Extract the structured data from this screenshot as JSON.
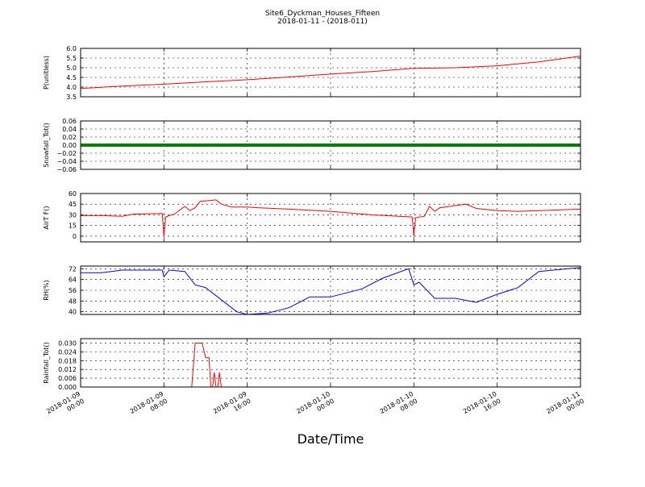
{
  "figure": {
    "title_line1": "Site6_Dyckman_Houses_Fifteen",
    "title_line2": "2018-01-11 - (2018-011)",
    "xlabel": "Date/Time"
  },
  "x_axis": {
    "start": "2018-01-09 00:00",
    "end": "2018-01-11 00:00",
    "ticks": [
      {
        "line1": "2018-01-09",
        "line2": "00:00"
      },
      {
        "line1": "2018-01-09",
        "line2": "08:00"
      },
      {
        "line1": "2018-01-09",
        "line2": "16:00"
      },
      {
        "line1": "2018-01-10",
        "line2": "00:00"
      },
      {
        "line1": "2018-01-10",
        "line2": "08:00"
      },
      {
        "line1": "2018-01-10",
        "line2": "16:00"
      },
      {
        "line1": "2018-01-11",
        "line2": "00:00"
      }
    ]
  },
  "chart_data": [
    {
      "type": "line",
      "ylabel": "P(unitless)",
      "ylim": [
        3.5,
        6.0
      ],
      "yticks": [
        "3.5",
        "4.0",
        "4.5",
        "5.0",
        "5.5",
        "6.0"
      ],
      "grid": true,
      "color": "#ff0000",
      "x": [
        "2018-01-09 00:00",
        "2018-01-09 04:00",
        "2018-01-09 08:00",
        "2018-01-09 12:00",
        "2018-01-09 16:00",
        "2018-01-09 20:00",
        "2018-01-10 00:00",
        "2018-01-10 04:00",
        "2018-01-10 08:00",
        "2018-01-10 12:00",
        "2018-01-10 16:00",
        "2018-01-10 20:00",
        "2018-01-11 00:00"
      ],
      "y": [
        3.93,
        4.05,
        4.15,
        4.27,
        4.38,
        4.52,
        4.67,
        4.8,
        4.97,
        5.0,
        5.1,
        5.3,
        5.6
      ]
    },
    {
      "type": "line",
      "ylabel": "Snowfall_Tot()",
      "ylim": [
        -0.06,
        0.06
      ],
      "yticks": [
        "−0.06",
        "−0.04",
        "−0.02",
        "0.00",
        "0.02",
        "0.04",
        "0.06"
      ],
      "grid": true,
      "color": "#008000",
      "x": [
        "2018-01-09 00:00",
        "2018-01-11 00:00"
      ],
      "y": [
        0,
        0
      ]
    },
    {
      "type": "line",
      "ylabel": "AirT F()",
      "ylim": [
        -8,
        60
      ],
      "yticks": [
        "0",
        "15",
        "30",
        "45",
        "60"
      ],
      "grid": true,
      "color": "#ff0000",
      "x": [
        "2018-01-09 00:00",
        "2018-01-09 02:00",
        "2018-01-09 04:00",
        "2018-01-09 05:00",
        "2018-01-09 07:50",
        "2018-01-09 08:00",
        "2018-01-09 08:10",
        "2018-01-09 08:30",
        "2018-01-09 09:00",
        "2018-01-09 10:00",
        "2018-01-09 10:30",
        "2018-01-09 11:00",
        "2018-01-09 11:30",
        "2018-01-09 13:00",
        "2018-01-09 13:30",
        "2018-01-09 14:30",
        "2018-01-09 16:00",
        "2018-01-09 17:00",
        "2018-01-09 20:00",
        "2018-01-10 00:00",
        "2018-01-10 04:00",
        "2018-01-10 07:50",
        "2018-01-10 08:00",
        "2018-01-10 08:10",
        "2018-01-10 09:00",
        "2018-01-10 09:30",
        "2018-01-10 10:00",
        "2018-01-10 10:30",
        "2018-01-10 12:00",
        "2018-01-10 13:00",
        "2018-01-10 14:00",
        "2018-01-10 16:00",
        "2018-01-10 18:00",
        "2018-01-10 20:00",
        "2018-01-11 00:00"
      ],
      "y": [
        29,
        29,
        28,
        31,
        32,
        0,
        27,
        29,
        31,
        42,
        36,
        40,
        49,
        51,
        45,
        41,
        41,
        40,
        38,
        35,
        30,
        27,
        0,
        26,
        28,
        42,
        35,
        40,
        43,
        45,
        39,
        36,
        35,
        36,
        38
      ]
    },
    {
      "type": "line",
      "ylabel": "RH(%)",
      "ylim": [
        38,
        74
      ],
      "yticks": [
        "40",
        "48",
        "56",
        "64",
        "72"
      ],
      "grid": true,
      "color": "#0000ff",
      "x": [
        "2018-01-09 00:00",
        "2018-01-09 02:00",
        "2018-01-09 04:00",
        "2018-01-09 06:00",
        "2018-01-09 07:50",
        "2018-01-09 08:00",
        "2018-01-09 08:30",
        "2018-01-09 10:00",
        "2018-01-09 11:00",
        "2018-01-09 12:00",
        "2018-01-09 14:00",
        "2018-01-09 15:00",
        "2018-01-09 16:00",
        "2018-01-09 18:00",
        "2018-01-09 20:00",
        "2018-01-09 22:00",
        "2018-01-10 00:00",
        "2018-01-10 02:00",
        "2018-01-10 03:00",
        "2018-01-10 05:00",
        "2018-01-10 07:30",
        "2018-01-10 08:00",
        "2018-01-10 08:30",
        "2018-01-10 10:00",
        "2018-01-10 12:00",
        "2018-01-10 14:00",
        "2018-01-10 16:00",
        "2018-01-10 18:00",
        "2018-01-10 20:00",
        "2018-01-11 00:00"
      ],
      "y": [
        69,
        69,
        71,
        71,
        71,
        66,
        71,
        70,
        60,
        58,
        46,
        40,
        38,
        39,
        43,
        51,
        51,
        55,
        57,
        65,
        72,
        60,
        62,
        50,
        50,
        47,
        53,
        58,
        70,
        73
      ]
    },
    {
      "type": "line",
      "ylabel": "Rainfall_Tot()",
      "ylim": [
        0,
        0.033
      ],
      "yticks": [
        "0.000",
        "0.006",
        "0.012",
        "0.018",
        "0.024",
        "0.030"
      ],
      "grid": true,
      "color": "#ff0000",
      "x": [
        "2018-01-09 00:00",
        "2018-01-09 10:40",
        "2018-01-09 11:00",
        "2018-01-09 11:40",
        "2018-01-09 12:00",
        "2018-01-09 12:20",
        "2018-01-09 12:30",
        "2018-01-09 12:40",
        "2018-01-09 12:50",
        "2018-01-09 13:00",
        "2018-01-09 13:10",
        "2018-01-09 13:20",
        "2018-01-09 13:30",
        "2018-01-09 13:40",
        "2018-01-11 00:00"
      ],
      "y": [
        0,
        0,
        0.03,
        0.03,
        0.02,
        0.02,
        0,
        0,
        0.01,
        0,
        0,
        0.01,
        0,
        0,
        0
      ]
    }
  ]
}
